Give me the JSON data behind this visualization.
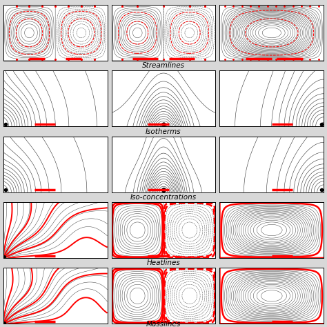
{
  "row_labels": [
    "Streamlines",
    "Isotherms",
    "Iso-concentrations",
    "Heatlines",
    "Masslines"
  ],
  "background_color": "#d8d8d8",
  "panel_bg": "#ffffff",
  "fig_width": 4.74,
  "fig_height": 4.74
}
